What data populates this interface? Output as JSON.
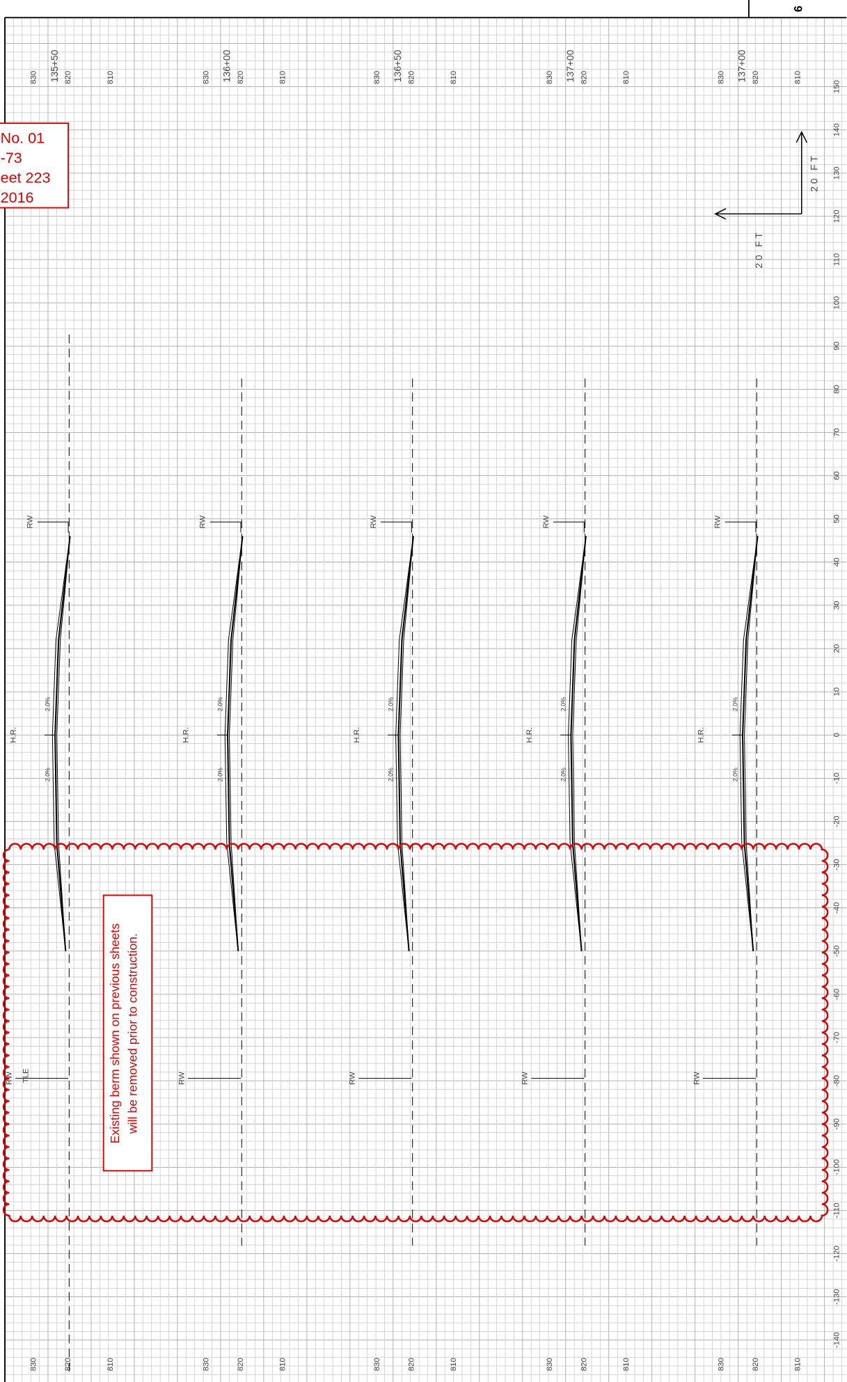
{
  "sheet": "6",
  "revision": [
    "No. 01",
    "-73",
    "eet 223",
    "2016"
  ],
  "scale": {
    "vertical": "20 FT",
    "horizontal": "20 FT"
  },
  "sections": [
    {
      "station": "135+50",
      "elevations": [
        "830",
        "820",
        "810"
      ],
      "rw_top": "RW",
      "rw_bottom": "RW",
      "hr": "H.R.",
      "slopes": [
        "2.0%",
        "2.0%"
      ]
    },
    {
      "station": "136+00",
      "elevations": [
        "830",
        "820",
        "810"
      ],
      "rw_top": "RW",
      "rw_bottom": "RW",
      "hr": "H.R.",
      "slopes": [
        "2.0%",
        "2.0%"
      ]
    },
    {
      "station": "136+50",
      "elevations": [
        "830",
        "820",
        "810"
      ],
      "rw_top": "RW",
      "rw_bottom": "RW",
      "hr": "H.R.",
      "slopes": [
        "2.0%",
        "2.0%"
      ]
    },
    {
      "station": "137+00",
      "elevations": [
        "830",
        "820",
        "810"
      ],
      "rw_top": "RW",
      "rw_bottom": "RW",
      "hr": "H.R.",
      "slopes": [
        "2.0%",
        "2.0%"
      ]
    },
    {
      "station": "137+00",
      "elevations": [
        "830",
        "820",
        "810"
      ],
      "rw_top": "RW",
      "rw_bottom": "RW",
      "hr": "H.R.",
      "slopes": [
        "2.0%",
        "2.0%"
      ]
    }
  ],
  "offsets": [
    150,
    140,
    130,
    120,
    110,
    100,
    90,
    80,
    70,
    60,
    50,
    40,
    30,
    20,
    10,
    0,
    -10,
    -20,
    -30,
    -40,
    -50,
    -60,
    -70,
    -80,
    -90,
    -100,
    -110,
    -120,
    -130,
    -140
  ],
  "note": [
    "Existing berm shown on previous sheets",
    "will be removed prior to construction."
  ],
  "tle": "TLE"
}
